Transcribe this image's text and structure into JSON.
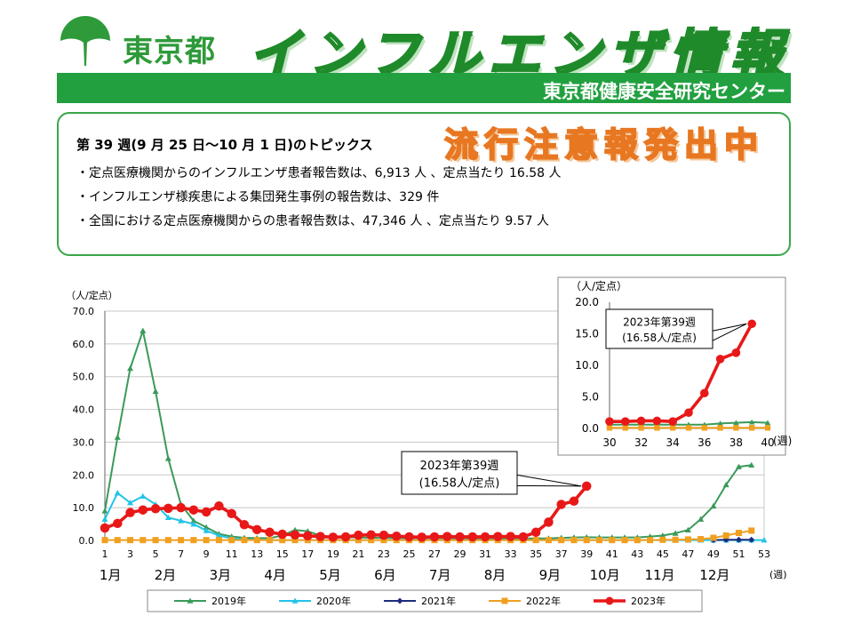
{
  "header": {
    "org": "東京都",
    "title": "インフルエンザ情報",
    "center": "東京都健康安全研究センター"
  },
  "topics": {
    "week": "第 39 週(9 月 25 日～10 月 1 日)のトピックス",
    "alert": "流行注意報発出中",
    "items": [
      "・定点医療機関からのインフルエンザ患者報告数は、6,913 人 、定点当たり 16.58 人",
      "・インフルエンザ様疾患による集団発生事例の報告数は、329 件",
      "・全国における定点医療機関からの患者報告数は、47,346 人 、定点当たり 9.57 人"
    ]
  },
  "colors": {
    "green": "#22a040",
    "y2019": "#3a9a5a",
    "y2020": "#22c4e8",
    "y2021": "#1c2c7e",
    "y2022": "#f0a020",
    "y2023": "#e81818"
  },
  "chart_data": [
    {
      "type": "line",
      "ylabel": "（人/定点）",
      "xunit": "(週)",
      "ylim": [
        0,
        70
      ],
      "yticks": [
        "0.0",
        "10.0",
        "20.0",
        "30.0",
        "40.0",
        "50.0",
        "60.0",
        "70.0"
      ],
      "xlim": [
        1,
        53
      ],
      "xticks": [
        "1",
        "3",
        "5",
        "7",
        "9",
        "11",
        "13",
        "15",
        "17",
        "19",
        "21",
        "23",
        "25",
        "27",
        "29",
        "31",
        "33",
        "35",
        "37",
        "39",
        "41",
        "43",
        "45",
        "47",
        "49",
        "51",
        "53"
      ],
      "months": [
        "1月",
        "2月",
        "3月",
        "4月",
        "5月",
        "6月",
        "7月",
        "8月",
        "9月",
        "10月",
        "11月",
        "12月"
      ],
      "grid": true,
      "legend_position": "bottom",
      "series": [
        {
          "name": "2019年",
          "key": "y2019",
          "marker": "triangle",
          "x": [
            1,
            2,
            3,
            4,
            5,
            6,
            7,
            8,
            9,
            10,
            11,
            12,
            13,
            14,
            15,
            16,
            17,
            18,
            19,
            20,
            21,
            22,
            23,
            24,
            25,
            26,
            27,
            28,
            29,
            30,
            31,
            32,
            33,
            34,
            35,
            36,
            37,
            38,
            39,
            40,
            41,
            42,
            43,
            44,
            45,
            46,
            47,
            48,
            49,
            50,
            51,
            52
          ],
          "y": [
            9.0,
            31.5,
            52.5,
            64.0,
            45.5,
            25.0,
            11.0,
            6.0,
            4.0,
            2.0,
            1.2,
            0.8,
            0.7,
            0.7,
            1.5,
            3.2,
            2.8,
            1.5,
            1.0,
            1.0,
            0.9,
            0.8,
            0.8,
            0.7,
            0.7,
            0.7,
            0.7,
            0.7,
            0.6,
            0.6,
            0.6,
            0.6,
            0.6,
            0.6,
            0.6,
            0.6,
            0.8,
            0.9,
            1.0,
            0.9,
            0.9,
            0.9,
            0.9,
            1.2,
            1.5,
            2.2,
            3.2,
            6.5,
            10.5,
            17.0,
            22.5,
            23.0
          ]
        },
        {
          "name": "2020年",
          "key": "y2020",
          "marker": "triangle",
          "x": [
            1,
            2,
            3,
            4,
            5,
            6,
            7,
            8,
            9,
            10,
            11,
            12,
            13,
            14,
            15,
            16,
            17,
            18,
            19,
            20,
            21,
            22,
            23,
            24,
            25,
            26,
            27,
            28,
            29,
            30,
            31,
            32,
            33,
            34,
            35,
            36,
            37,
            38,
            39,
            40,
            41,
            42,
            43,
            44,
            45,
            46,
            47,
            48,
            49,
            50,
            51,
            52,
            53
          ],
          "y": [
            6.5,
            14.5,
            11.5,
            13.5,
            11.0,
            7.0,
            6.0,
            5.0,
            3.0,
            1.5,
            0.6,
            0.3,
            0.2,
            0.1,
            0.1,
            0.1,
            0.1,
            0.1,
            0.1,
            0.1,
            0.1,
            0.1,
            0.1,
            0.1,
            0.1,
            0.1,
            0.1,
            0.1,
            0.1,
            0.1,
            0.1,
            0.1,
            0.1,
            0.1,
            0.1,
            0.1,
            0.1,
            0.1,
            0.1,
            0.1,
            0.1,
            0.1,
            0.1,
            0.1,
            0.1,
            0.1,
            0.1,
            0.1,
            0.1,
            0.1,
            0.1,
            0.1,
            0.1
          ]
        },
        {
          "name": "2021年",
          "key": "y2021",
          "marker": "diamond",
          "x": [
            49,
            50,
            51,
            52
          ],
          "y": [
            0.1,
            0.2,
            0.2,
            0.2
          ]
        },
        {
          "name": "2022年",
          "key": "y2022",
          "marker": "square",
          "x": [
            1,
            2,
            3,
            4,
            5,
            6,
            7,
            8,
            9,
            10,
            11,
            12,
            13,
            14,
            15,
            16,
            17,
            18,
            19,
            20,
            21,
            22,
            23,
            24,
            25,
            26,
            27,
            28,
            29,
            30,
            31,
            32,
            33,
            34,
            35,
            36,
            37,
            38,
            39,
            40,
            41,
            42,
            43,
            44,
            45,
            46,
            47,
            48,
            49,
            50,
            51,
            52
          ],
          "y": [
            0.1,
            0.1,
            0.1,
            0.1,
            0.1,
            0.1,
            0.1,
            0.1,
            0.1,
            0.1,
            0.1,
            0.1,
            0.1,
            0.1,
            0.1,
            0.1,
            0.1,
            0.1,
            0.1,
            0.1,
            0.1,
            0.1,
            0.1,
            0.1,
            0.1,
            0.1,
            0.1,
            0.1,
            0.1,
            0.1,
            0.1,
            0.1,
            0.1,
            0.1,
            0.1,
            0.1,
            0.1,
            0.1,
            0.1,
            0.1,
            0.1,
            0.1,
            0.1,
            0.1,
            0.2,
            0.2,
            0.3,
            0.4,
            0.8,
            1.5,
            2.3,
            3.0
          ]
        },
        {
          "name": "2023年",
          "key": "y2023",
          "marker": "circle",
          "x": [
            1,
            2,
            3,
            4,
            5,
            6,
            7,
            8,
            9,
            10,
            11,
            12,
            13,
            14,
            15,
            16,
            17,
            18,
            19,
            20,
            21,
            22,
            23,
            24,
            25,
            26,
            27,
            28,
            29,
            30,
            31,
            32,
            33,
            34,
            35,
            36,
            37,
            38,
            39
          ],
          "y": [
            3.8,
            5.2,
            8.5,
            9.3,
            9.7,
            9.8,
            10.0,
            9.3,
            8.7,
            10.5,
            8.2,
            4.8,
            3.3,
            2.5,
            1.9,
            1.7,
            1.4,
            1.2,
            1.0,
            1.1,
            1.6,
            1.7,
            1.6,
            1.3,
            1.1,
            1.0,
            1.1,
            1.2,
            1.1,
            1.1,
            1.1,
            1.2,
            1.2,
            1.1,
            2.5,
            5.6,
            11.0,
            12.0,
            16.58
          ]
        }
      ],
      "annotations": [
        "2023年第39週",
        "(16.58人/定点)"
      ]
    },
    {
      "type": "line",
      "ylabel": "（人/定点）",
      "xunit": "(週)",
      "ylim": [
        0,
        20
      ],
      "yticks": [
        "0.0",
        "5.0",
        "10.0",
        "15.0",
        "20.0"
      ],
      "xlim": [
        30,
        40
      ],
      "xticks": [
        "30",
        "32",
        "34",
        "36",
        "38",
        "40"
      ],
      "grid": false,
      "series": [
        {
          "key": "y2019",
          "marker": "triangle",
          "x": [
            30,
            31,
            32,
            33,
            34,
            35,
            36,
            37,
            38,
            39,
            40
          ],
          "y": [
            0.6,
            0.6,
            0.6,
            0.6,
            0.6,
            0.6,
            0.6,
            0.8,
            0.9,
            1.0,
            0.9
          ]
        },
        {
          "key": "y2022",
          "marker": "square",
          "x": [
            30,
            31,
            32,
            33,
            34,
            35,
            36,
            37,
            38,
            39,
            40
          ],
          "y": [
            0.1,
            0.1,
            0.1,
            0.1,
            0.1,
            0.1,
            0.1,
            0.1,
            0.1,
            0.1,
            0.1
          ]
        },
        {
          "key": "y2023",
          "marker": "circle",
          "x": [
            30,
            31,
            32,
            33,
            34,
            35,
            36,
            37,
            38,
            39
          ],
          "y": [
            1.1,
            1.1,
            1.2,
            1.2,
            1.1,
            2.5,
            5.6,
            11.0,
            12.0,
            16.58
          ]
        }
      ],
      "annotations": [
        "2023年第39週",
        "(16.58人/定点)"
      ]
    }
  ]
}
